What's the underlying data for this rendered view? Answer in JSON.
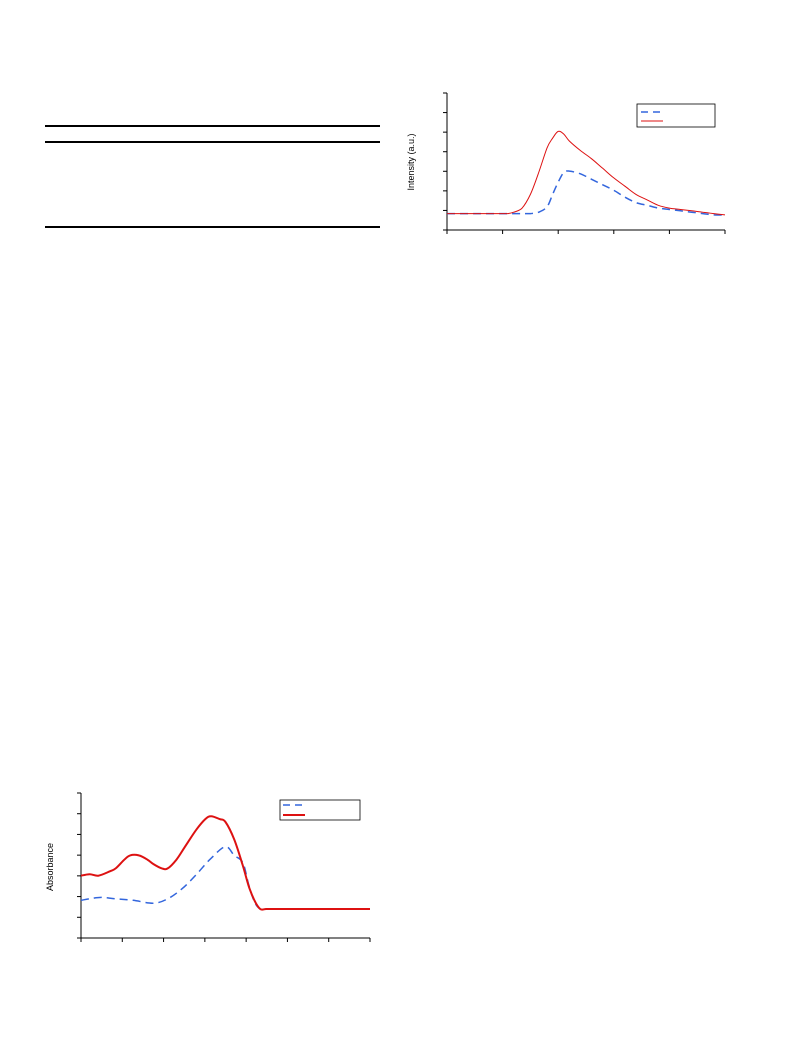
{
  "table": {
    "columns": [
      "",
      "",
      "",
      ""
    ],
    "rows": []
  },
  "chart_data": [
    {
      "type": "line",
      "title": "",
      "xlabel": "",
      "ylabel": "Intensity (a.u.)",
      "xlim": [
        0,
        100
      ],
      "ylim": [
        0,
        100
      ],
      "legend": "top-right",
      "grid": false,
      "series": [
        {
          "name": "",
          "color": "#3366dd",
          "style": "dashed",
          "x": [
            0,
            10,
            20,
            27,
            30,
            33,
            36,
            38,
            40,
            42,
            44,
            48,
            52,
            56,
            60,
            64,
            68,
            72,
            76,
            80,
            84,
            88,
            92,
            96,
            100
          ],
          "y": [
            12,
            12,
            12,
            12,
            12,
            13,
            17,
            26,
            35,
            42,
            43,
            41,
            37,
            33,
            29,
            24,
            20,
            18,
            16,
            15,
            14,
            13,
            12,
            11,
            11
          ]
        },
        {
          "name": "",
          "color": "#dd1111",
          "style": "solid",
          "x": [
            0,
            10,
            20,
            22,
            24,
            27,
            30,
            33,
            36,
            38,
            40,
            42,
            44,
            48,
            52,
            56,
            60,
            64,
            68,
            72,
            76,
            80,
            84,
            88,
            92,
            96,
            100
          ],
          "y": [
            12,
            12,
            12,
            12,
            13,
            16,
            26,
            42,
            60,
            67,
            72,
            70,
            65,
            58,
            52,
            45,
            38,
            32,
            26,
            22,
            18,
            16,
            15,
            14,
            13,
            12,
            11
          ]
        }
      ]
    },
    {
      "type": "line",
      "title": "",
      "xlabel": "",
      "ylabel": "Absorbance",
      "xlim": [
        0,
        100
      ],
      "ylim": [
        0,
        100
      ],
      "legend": "top-right",
      "grid": false,
      "series": [
        {
          "name": "",
          "color": "#3366dd",
          "style": "dashed",
          "x": [
            0,
            3,
            7,
            12,
            18,
            25,
            30,
            35,
            40,
            45,
            50,
            53,
            56,
            58,
            60,
            62,
            64,
            66,
            68,
            70,
            72,
            75,
            80,
            85,
            90,
            95,
            100
          ],
          "y": [
            26,
            27,
            28,
            27,
            26,
            24,
            27,
            34,
            44,
            55,
            63,
            57,
            52,
            37,
            25,
            20,
            20,
            20,
            20,
            20,
            20,
            20,
            20,
            20,
            20,
            20,
            20
          ]
        },
        {
          "name": "",
          "color": "#dd1111",
          "style": "solid",
          "x": [
            0,
            3,
            6,
            10,
            12,
            15,
            17,
            20,
            23,
            25,
            28,
            30,
            33,
            36,
            40,
            43,
            45,
            48,
            50,
            53,
            56,
            58,
            60,
            62,
            64,
            66,
            68,
            70,
            75,
            80,
            85,
            90,
            95,
            100
          ],
          "y": [
            43,
            44,
            43,
            46,
            48,
            54,
            57,
            57,
            54,
            51,
            48,
            48,
            54,
            63,
            75,
            82,
            84,
            82,
            80,
            68,
            50,
            36,
            26,
            20,
            20,
            20,
            20,
            20,
            20,
            20,
            20,
            20,
            20,
            20
          ]
        }
      ]
    }
  ]
}
